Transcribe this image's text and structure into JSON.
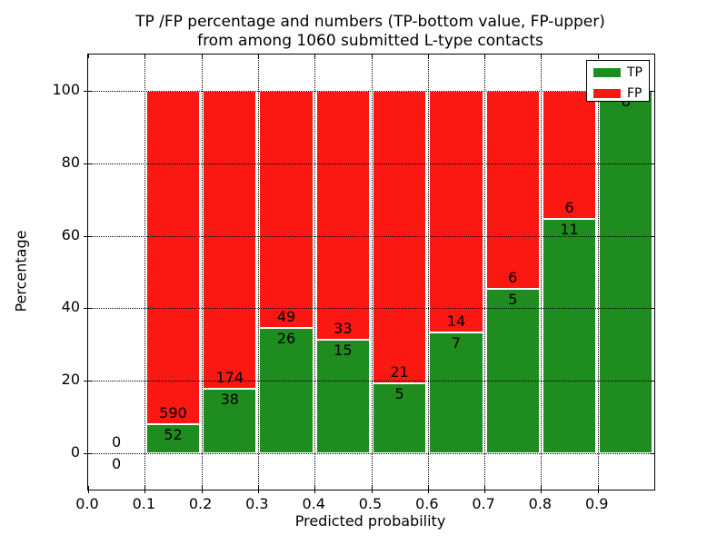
{
  "figure": {
    "background": "#ffffff"
  },
  "chart_data": {
    "type": "bar",
    "stacked": true,
    "orientation": "vertical",
    "title_lines": [
      "TP /FP percentage and numbers (TP-bottom value, FP-upper)",
      "from among 1060 submitted L-type contacts"
    ],
    "xlabel": "Predicted probability",
    "ylabel": "Percentage",
    "xlim": [
      0.0,
      1.0
    ],
    "ylim": [
      -10,
      110
    ],
    "grid": true,
    "grid_style": "dotted",
    "x_ticks": [
      {
        "value": 0.0,
        "label": "0.0"
      },
      {
        "value": 0.1,
        "label": "0.1"
      },
      {
        "value": 0.2,
        "label": "0.2"
      },
      {
        "value": 0.3,
        "label": "0.3"
      },
      {
        "value": 0.4,
        "label": "0.4"
      },
      {
        "value": 0.5,
        "label": "0.5"
      },
      {
        "value": 0.6,
        "label": "0.6"
      },
      {
        "value": 0.7,
        "label": "0.7"
      },
      {
        "value": 0.8,
        "label": "0.8"
      },
      {
        "value": 0.9,
        "label": "0.9"
      }
    ],
    "y_ticks": [
      {
        "value": 0,
        "label": "0"
      },
      {
        "value": 20,
        "label": "20"
      },
      {
        "value": 40,
        "label": "40"
      },
      {
        "value": 60,
        "label": "60"
      },
      {
        "value": 80,
        "label": "80"
      },
      {
        "value": 100,
        "label": "100"
      }
    ],
    "legend": {
      "position": "upper-right",
      "entries": [
        {
          "label": "TP",
          "color": "#1e8c1e"
        },
        {
          "label": "FP",
          "color": "#fb1812"
        }
      ]
    },
    "colors": {
      "tp": "#1e8c1e",
      "fp": "#fb1812"
    },
    "total_contacts": 1060,
    "bins": [
      {
        "range": [
          0.0,
          0.1
        ],
        "tp": 0,
        "fp": 0,
        "tp_pct": 0.0
      },
      {
        "range": [
          0.1,
          0.2
        ],
        "tp": 52,
        "fp": 590,
        "tp_pct": 8.1
      },
      {
        "range": [
          0.2,
          0.3
        ],
        "tp": 38,
        "fp": 174,
        "tp_pct": 17.92
      },
      {
        "range": [
          0.3,
          0.4
        ],
        "tp": 26,
        "fp": 49,
        "tp_pct": 34.67
      },
      {
        "range": [
          0.4,
          0.5
        ],
        "tp": 15,
        "fp": 33,
        "tp_pct": 31.25
      },
      {
        "range": [
          0.5,
          0.6
        ],
        "tp": 5,
        "fp": 21,
        "tp_pct": 19.23
      },
      {
        "range": [
          0.6,
          0.7
        ],
        "tp": 7,
        "fp": 14,
        "tp_pct": 33.33
      },
      {
        "range": [
          0.7,
          0.8
        ],
        "tp": 5,
        "fp": 6,
        "tp_pct": 45.45
      },
      {
        "range": [
          0.8,
          0.9
        ],
        "tp": 11,
        "fp": 6,
        "tp_pct": 64.71
      },
      {
        "range": [
          0.9,
          1.0
        ],
        "tp": 8,
        "fp": 0,
        "tp_pct": 100.0
      }
    ]
  }
}
